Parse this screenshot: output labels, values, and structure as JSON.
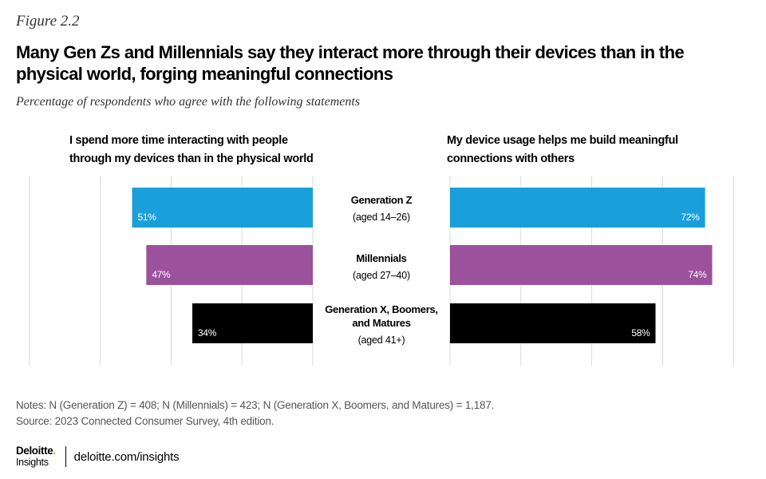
{
  "figure_label": "Figure 2.2",
  "title": "Many Gen Zs and Millennials say they interact more through their devices than in the physical world, forging meaningful connections",
  "subtitle": "Percentage of respondents who agree with the following statements",
  "colors": {
    "gen_z": "#1a9fdb",
    "millennials": "#9b519b",
    "gen_x_boomers_matures": "#000000",
    "gridline": "#d9d9d9",
    "logo_dot": "#86bc25"
  },
  "chart_data": {
    "type": "bar",
    "orientation": "horizontal",
    "layout": "back-to-back",
    "categories": [
      {
        "name": "Generation Z",
        "age": "(aged 14–26)"
      },
      {
        "name": "Millennials",
        "age": "(aged 27–40)"
      },
      {
        "name": "Generation X, Boomers, and Matures",
        "age": "(aged 41+)"
      }
    ],
    "panels": [
      {
        "title": "I spend more time interacting with people through my devices than in the physical world",
        "values": [
          51,
          47,
          34
        ],
        "labels": [
          "51%",
          "47%",
          "34%"
        ],
        "direction": "left"
      },
      {
        "title": "My device usage helps me build meaningful connections with others",
        "values": [
          72,
          74,
          58
        ],
        "labels": [
          "72%",
          "74%",
          "58%"
        ],
        "direction": "right"
      }
    ],
    "xlim": [
      0,
      80
    ],
    "grid": true,
    "legend": "none"
  },
  "notes": "Notes: N (Generation Z) = 408; N (Millennials) = 423; N (Generation X, Boomers, and Matures) = 1,187.",
  "source": "Source: 2023 Connected Consumer Survey, 4th edition.",
  "footer": {
    "logo_main": "Deloitte",
    "logo_dot": ".",
    "logo_sub": "Insights",
    "url": "deloitte.com/insights"
  }
}
